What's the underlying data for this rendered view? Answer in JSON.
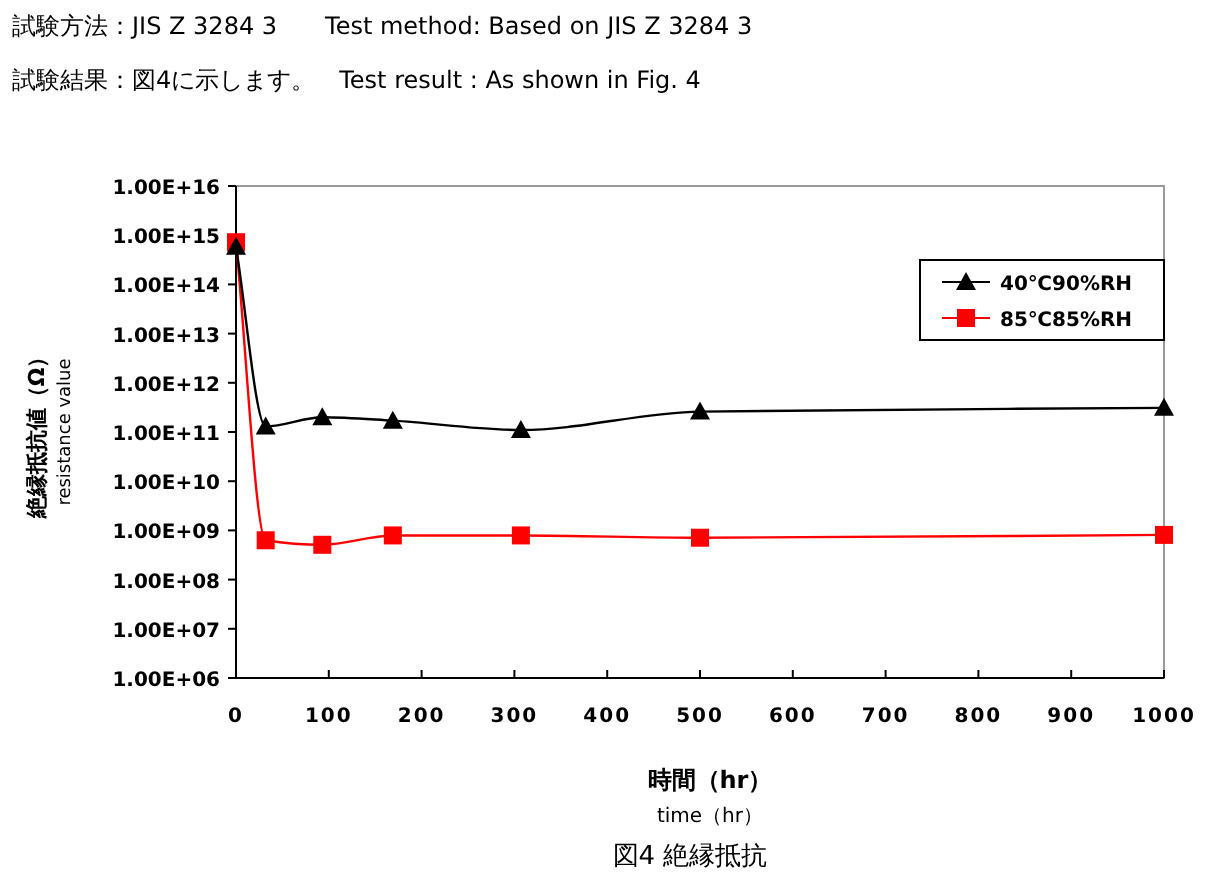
{
  "chart_data": {
    "type": "line",
    "annotations": [
      "試験方法：JIS Z 3284 3　　Test method: Based on JIS Z 3284 3",
      "試験結果：図4に示します。　Test result  : As shown in Fig. 4",
      "図4  絶縁抵抗"
    ],
    "xlabel": "時間（hr）\ntime（hr）",
    "ylabel": "絶縁抵抗値（Ω）\nresistance value",
    "x": [
      0,
      32,
      93,
      169,
      307,
      500,
      1000
    ],
    "series": [
      {
        "name": "40℃90%RH",
        "color": "#000000",
        "marker": "triangle",
        "values": [
          580000000000000.0,
          130000000000.0,
          200000000000.0,
          170000000000.0,
          110000000000.0,
          260000000000.0,
          310000000000.0
        ]
      },
      {
        "name": "85℃85%RH",
        "color": "#ff0000",
        "marker": "square",
        "values": [
          720000000000000.0,
          630000000.0,
          510000000.0,
          790000000.0,
          790000000.0,
          710000000.0,
          810000000.0
        ]
      }
    ],
    "log": "y",
    "xlim": [
      0,
      1000
    ],
    "xticks": [
      0,
      100,
      200,
      300,
      400,
      500,
      600,
      700,
      800,
      900,
      1000
    ],
    "ylim": [
      1000000.0,
      1e+16
    ],
    "yticks": [
      {
        "value": 1000000.0,
        "label": "1.00E+06"
      },
      {
        "value": 10000000.0,
        "label": "1.00E+07"
      },
      {
        "value": 100000000.0,
        "label": "1.00E+08"
      },
      {
        "value": 1000000000.0,
        "label": "1.00E+09"
      },
      {
        "value": 10000000000.0,
        "label": "1.00E+10"
      },
      {
        "value": 100000000000.0,
        "label": "1.00E+11"
      },
      {
        "value": 1000000000000.0,
        "label": "1.00E+12"
      },
      {
        "value": 10000000000000.0,
        "label": "1.00E+13"
      },
      {
        "value": 100000000000000.0,
        "label": "1.00E+14"
      },
      {
        "value": 1000000000000000.0,
        "label": "1.00E+15"
      },
      {
        "value": 1e+16,
        "label": "1.00E+16"
      }
    ],
    "grid": false,
    "legend": "top right",
    "line_style": "solid"
  }
}
